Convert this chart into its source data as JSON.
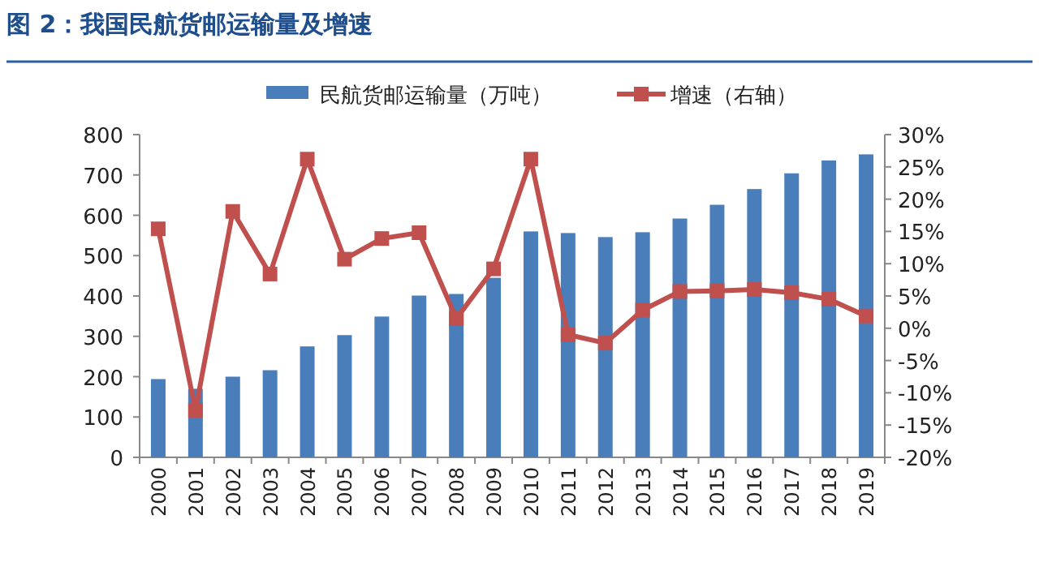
{
  "chart_data": {
    "type": "bar",
    "title": "图 2：我国民航货邮运输量及增速",
    "categories": [
      "2000",
      "2001",
      "2002",
      "2003",
      "2004",
      "2005",
      "2006",
      "2007",
      "2008",
      "2009",
      "2010",
      "2011",
      "2012",
      "2013",
      "2014",
      "2015",
      "2016",
      "2017",
      "2018",
      "2019"
    ],
    "series": [
      {
        "name": "民航货邮运输量（万吨）",
        "color": "#4a7ebb",
        "values": [
          194,
          170,
          200,
          216,
          275,
          303,
          349,
          401,
          405,
          445,
          560,
          556,
          546,
          558,
          592,
          626,
          665,
          704,
          736,
          751
        ]
      },
      {
        "name": "增速（右轴）",
        "type": "line",
        "axis": "y2",
        "color": "#c0504d",
        "marker": "square",
        "values": [
          15.4,
          -12.7,
          18.1,
          8.4,
          26.2,
          10.7,
          13.9,
          14.8,
          1.5,
          9.2,
          26.2,
          -1.0,
          -2.3,
          2.8,
          5.7,
          5.8,
          6.0,
          5.5,
          4.5,
          1.9
        ]
      }
    ],
    "ylim": [
      0,
      800
    ],
    "yticks": [
      0,
      100,
      200,
      300,
      400,
      500,
      600,
      700,
      800
    ],
    "y2lim": [
      -20,
      30
    ],
    "y2ticks": [
      {
        "value": -20,
        "label": "-20%"
      },
      {
        "value": -15,
        "label": "-15%"
      },
      {
        "value": -10,
        "label": "-10%"
      },
      {
        "value": -5,
        "label": "-5%"
      },
      {
        "value": 0,
        "label": "0%"
      },
      {
        "value": 5,
        "label": "5%"
      },
      {
        "value": 10,
        "label": "10%"
      },
      {
        "value": 15,
        "label": "15%"
      },
      {
        "value": 20,
        "label": "20%"
      },
      {
        "value": 25,
        "label": "25%"
      },
      {
        "value": 30,
        "label": "30%"
      }
    ],
    "legend": "top",
    "grid": false
  }
}
